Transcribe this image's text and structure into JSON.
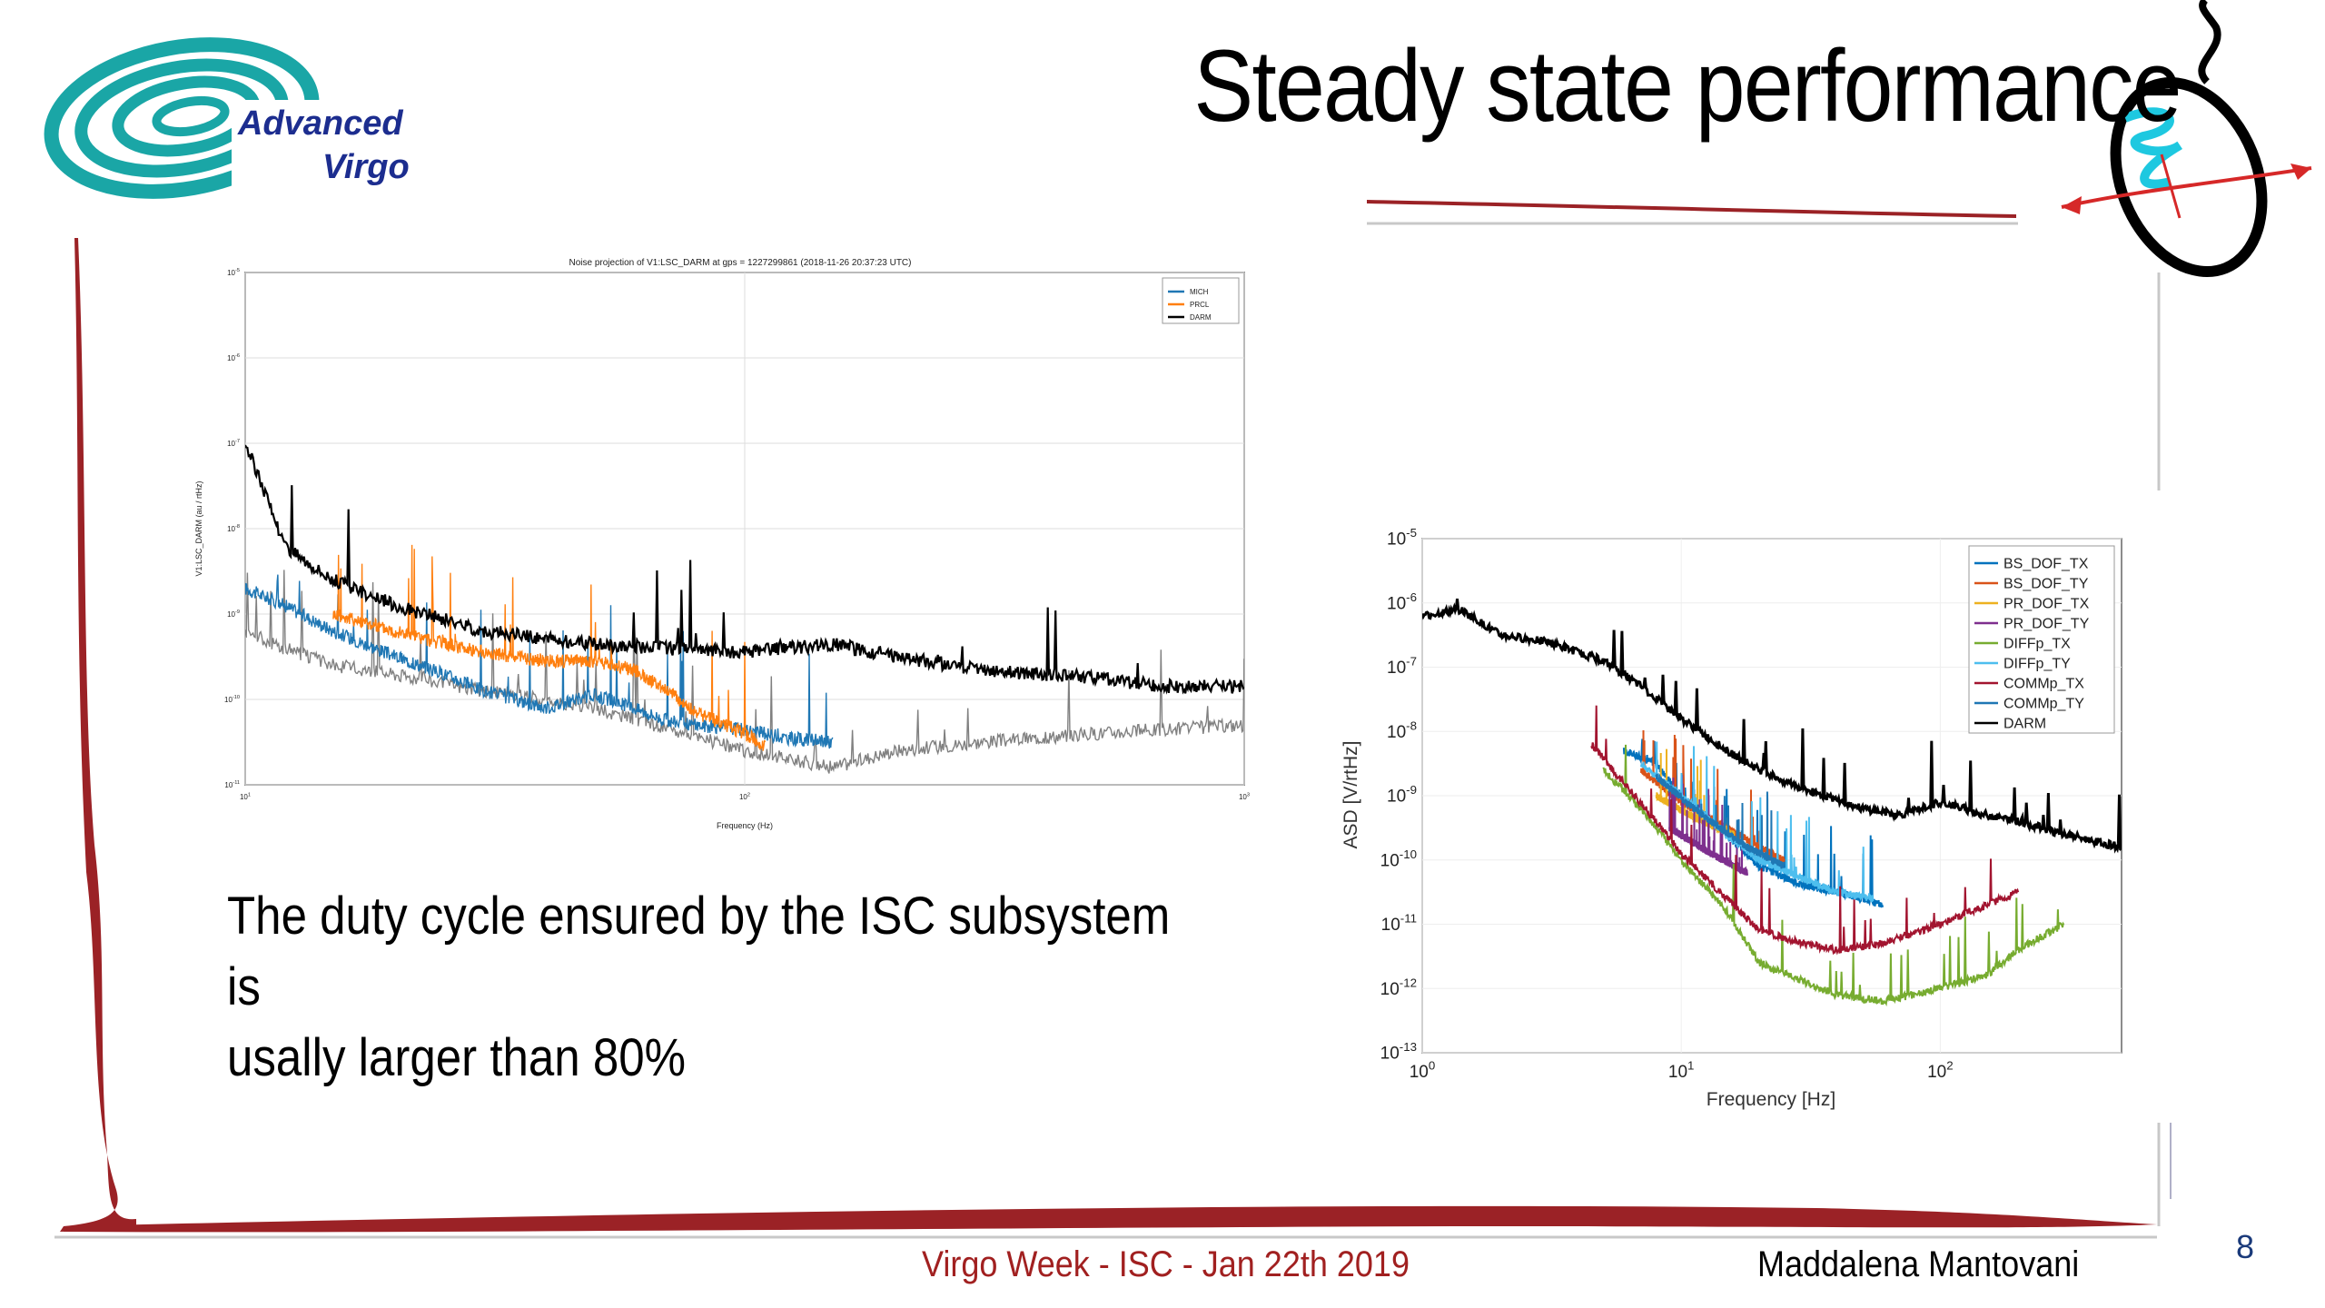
{
  "slide": {
    "title": "Steady state performance",
    "caption_line1": "The duty cycle ensured by the ISC subsystem is",
    "caption_line2": "usally larger than 80%",
    "footer_center": "Virgo Week - ISC - Jan 22th 2019",
    "footer_right": "Maddalena Mantovani",
    "page_number": "8",
    "logo_line1": "Advanced",
    "logo_line2": "Virgo"
  },
  "colors": {
    "accent_red": "#9b2226",
    "logo_teal": "#1aa6a6",
    "logo_navy": "#1c2d8f"
  },
  "chart_data": [
    {
      "type": "line",
      "title": "Noise projection of V1:LSC_DARM at gps = 1227299861 (2018-11-26 20:37:23 UTC)",
      "xlabel": "Frequency (Hz)",
      "ylabel": "V1:LSC_DARM (au / rtHz)",
      "xscale": "log",
      "yscale": "log",
      "xlim": [
        10,
        1000
      ],
      "ylim_exponents": [
        -11,
        -5
      ],
      "x_tick_exponents": [
        1,
        2,
        3
      ],
      "y_tick_exponents": [
        -11,
        -10,
        -9,
        -8,
        -7,
        -6,
        -5
      ],
      "legend": [
        "MICH",
        "PRCL",
        "DARM"
      ],
      "grid": true,
      "series": [
        {
          "name": "MICH",
          "color": "#1f77b4",
          "x": [
            10,
            12,
            15,
            20,
            25,
            30,
            40,
            50,
            60,
            70,
            80,
            100,
            120,
            150
          ],
          "y_exp": [
            -8.7,
            -8.9,
            -9.2,
            -9.5,
            -9.7,
            -9.9,
            -10.1,
            -9.95,
            -10.1,
            -10.25,
            -10.3,
            -10.35,
            -10.45,
            -10.5
          ]
        },
        {
          "name": "PRCL",
          "color": "#ff7f0e",
          "x": [
            15,
            20,
            25,
            30,
            40,
            50,
            60,
            70,
            80,
            100,
            110
          ],
          "y_exp": [
            -9.0,
            -9.2,
            -9.35,
            -9.45,
            -9.55,
            -9.55,
            -9.65,
            -9.9,
            -10.15,
            -10.4,
            -10.55
          ]
        },
        {
          "name": "DARM",
          "color": "#000000",
          "x": [
            10,
            11,
            12,
            15,
            20,
            30,
            50,
            70,
            100,
            150,
            200,
            300,
            500,
            700,
            1000
          ],
          "y_exp": [
            -7.0,
            -7.6,
            -8.2,
            -8.6,
            -8.9,
            -9.2,
            -9.35,
            -9.4,
            -9.45,
            -9.35,
            -9.5,
            -9.65,
            -9.75,
            -9.85,
            -9.85
          ]
        },
        {
          "name": "unlabeled",
          "color": "#808080",
          "x": [
            10,
            12,
            15,
            20,
            30,
            50,
            100,
            150,
            200,
            300,
            500,
            1000
          ],
          "y_exp": [
            -9.2,
            -9.4,
            -9.6,
            -9.7,
            -9.9,
            -10.1,
            -10.6,
            -10.8,
            -10.6,
            -10.5,
            -10.4,
            -10.3
          ]
        }
      ]
    },
    {
      "type": "line",
      "title": "",
      "xlabel": "Frequency [Hz]",
      "ylabel": "ASD [V/rtHz]",
      "xscale": "log",
      "yscale": "log",
      "xlim_exponents": [
        0,
        2.7
      ],
      "ylim_exponents": [
        -13,
        -5
      ],
      "x_tick_exponents": [
        0,
        1,
        2
      ],
      "y_tick_exponents": [
        -13,
        -12,
        -11,
        -10,
        -9,
        -8,
        -7,
        -6,
        -5
      ],
      "legend": [
        "BS_DOF_TX",
        "BS_DOF_TY",
        "PR_DOF_TX",
        "PR_DOF_TY",
        "DIFFp_TX",
        "DIFFp_TY",
        "COMMp_TX",
        "COMMp_TY",
        "DARM"
      ],
      "grid": true,
      "series": [
        {
          "name": "BS_DOF_TX",
          "color": "#0072bd",
          "x": [
            6,
            8,
            10,
            15,
            20,
            30,
            40,
            50,
            60
          ],
          "y_exp": [
            -8.3,
            -8.5,
            -9.0,
            -9.6,
            -10.1,
            -10.4,
            -10.5,
            -10.6,
            -10.7
          ]
        },
        {
          "name": "BS_DOF_TY",
          "color": "#d95319",
          "x": [
            7,
            10,
            15,
            20,
            25
          ],
          "y_exp": [
            -8.6,
            -9.1,
            -9.5,
            -9.8,
            -10.0
          ]
        },
        {
          "name": "PR_DOF_TX",
          "color": "#edb120",
          "x": [
            8,
            12,
            16
          ],
          "y_exp": [
            -9.0,
            -9.4,
            -9.6
          ]
        },
        {
          "name": "PR_DOF_TY",
          "color": "#7e2f8e",
          "x": [
            9,
            13,
            18
          ],
          "y_exp": [
            -9.5,
            -9.9,
            -10.2
          ]
        },
        {
          "name": "DIFFp_TX",
          "color": "#77ac30",
          "x": [
            5,
            7,
            10,
            15,
            20,
            30,
            40,
            60,
            100,
            150,
            200,
            300
          ],
          "y_exp": [
            -8.6,
            -9.2,
            -10.0,
            -10.8,
            -11.6,
            -11.9,
            -12.1,
            -12.2,
            -12.0,
            -11.8,
            -11.4,
            -11.0
          ]
        },
        {
          "name": "DIFFp_TY",
          "color": "#4dbeee",
          "x": [
            7,
            10,
            15,
            20,
            30,
            40,
            55
          ],
          "y_exp": [
            -8.5,
            -9.0,
            -9.6,
            -10.0,
            -10.3,
            -10.5,
            -10.6
          ]
        },
        {
          "name": "COMMp_TX",
          "color": "#a2142f",
          "x": [
            4.5,
            6,
            8,
            10,
            15,
            20,
            30,
            40,
            60,
            100,
            150,
            200
          ],
          "y_exp": [
            -8.2,
            -8.8,
            -9.4,
            -9.9,
            -10.6,
            -11.1,
            -11.3,
            -11.4,
            -11.3,
            -11.0,
            -10.7,
            -10.5
          ]
        },
        {
          "name": "COMMp_TY",
          "color": "#1f77b4",
          "x": [
            8,
            12,
            18,
            25
          ],
          "y_exp": [
            -8.7,
            -9.3,
            -9.8,
            -10.1
          ]
        },
        {
          "name": "DARM",
          "color": "#000000",
          "x": [
            1,
            1.4,
            2,
            3,
            5,
            7,
            10,
            15,
            20,
            30,
            50,
            70,
            100,
            150,
            200,
            300,
            500
          ],
          "y_exp": [
            -6.2,
            -6.1,
            -6.5,
            -6.6,
            -6.9,
            -7.3,
            -7.8,
            -8.3,
            -8.6,
            -8.9,
            -9.2,
            -9.3,
            -9.1,
            -9.3,
            -9.4,
            -9.6,
            -9.8
          ]
        }
      ]
    }
  ]
}
